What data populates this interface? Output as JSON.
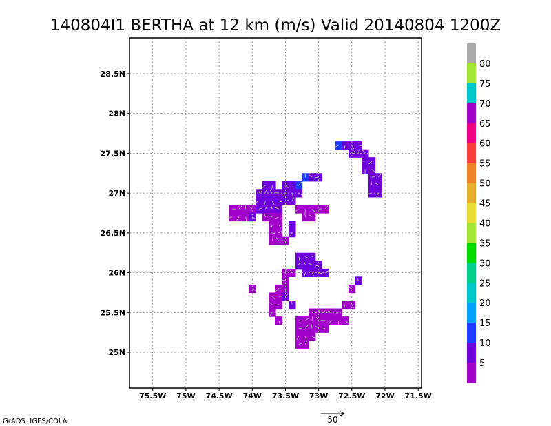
{
  "chart_data": {
    "type": "heatmap",
    "title": "140804I1 BERTHA at 12 km (m/s) Valid 20140804 1200Z",
    "x_tick_labels": [
      "75.5W",
      "75W",
      "74.5W",
      "74W",
      "73.5W",
      "73W",
      "72.5W",
      "72W",
      "71.5W"
    ],
    "x_tick_values": [
      -75.5,
      -75.0,
      -74.5,
      -74.0,
      -73.5,
      -73.0,
      -72.5,
      -72.0,
      -71.5
    ],
    "y_tick_labels": [
      "25N",
      "25.5N",
      "26N",
      "26.5N",
      "27N",
      "27.5N",
      "28N",
      "28.5N"
    ],
    "y_tick_values": [
      25.0,
      25.5,
      26.0,
      26.5,
      27.0,
      27.5,
      28.0,
      28.5
    ],
    "xlim": [
      -75.85,
      -71.45
    ],
    "ylim": [
      24.55,
      28.95
    ],
    "grid": true,
    "colorbar": {
      "labels": [
        "5",
        "10",
        "15",
        "20",
        "25",
        "30",
        "35",
        "40",
        "45",
        "50",
        "55",
        "60",
        "65",
        "70",
        "75",
        "80"
      ],
      "colors": [
        "#a000c8",
        "#6e00dc",
        "#1e3cff",
        "#00a0ff",
        "#00c8c8",
        "#00d28c",
        "#00dc00",
        "#a0e632",
        "#e6dc32",
        "#e6af2d",
        "#f08228",
        "#fa3c3c",
        "#f00082",
        "#a000c8",
        "#00c8c8",
        "#a0e632",
        "#aaaaaa"
      ]
    },
    "wind_speed_cells": [
      {
        "lon": -74.3,
        "lat": 26.8,
        "v": 5
      },
      {
        "lon": -74.2,
        "lat": 26.8,
        "v": 5
      },
      {
        "lon": -74.1,
        "lat": 26.8,
        "v": 5
      },
      {
        "lon": -74.0,
        "lat": 26.8,
        "v": 5
      },
      {
        "lon": -74.3,
        "lat": 26.7,
        "v": 5
      },
      {
        "lon": -74.2,
        "lat": 26.7,
        "v": 5
      },
      {
        "lon": -74.1,
        "lat": 26.7,
        "v": 5
      },
      {
        "lon": -74.0,
        "lat": 26.7,
        "v": 10
      },
      {
        "lon": -73.9,
        "lat": 26.8,
        "v": 10
      },
      {
        "lon": -73.8,
        "lat": 26.8,
        "v": 10
      },
      {
        "lon": -73.7,
        "lat": 26.8,
        "v": 10
      },
      {
        "lon": -73.6,
        "lat": 26.8,
        "v": 10
      },
      {
        "lon": -73.9,
        "lat": 26.9,
        "v": 10
      },
      {
        "lon": -73.8,
        "lat": 26.9,
        "v": 10
      },
      {
        "lon": -73.7,
        "lat": 26.9,
        "v": 10
      },
      {
        "lon": -73.6,
        "lat": 26.9,
        "v": 10
      },
      {
        "lon": -73.9,
        "lat": 27.0,
        "v": 10
      },
      {
        "lon": -73.8,
        "lat": 27.0,
        "v": 10
      },
      {
        "lon": -73.7,
        "lat": 27.0,
        "v": 10
      },
      {
        "lon": -73.6,
        "lat": 27.0,
        "v": 10
      },
      {
        "lon": -73.8,
        "lat": 27.1,
        "v": 10
      },
      {
        "lon": -73.7,
        "lat": 27.1,
        "v": 10
      },
      {
        "lon": -73.5,
        "lat": 27.1,
        "v": 10
      },
      {
        "lon": -73.4,
        "lat": 27.1,
        "v": 10
      },
      {
        "lon": -73.3,
        "lat": 27.1,
        "v": 15
      },
      {
        "lon": -73.2,
        "lat": 27.2,
        "v": 15
      },
      {
        "lon": -73.1,
        "lat": 27.2,
        "v": 10
      },
      {
        "lon": -73.0,
        "lat": 27.2,
        "v": 10
      },
      {
        "lon": -73.5,
        "lat": 27.0,
        "v": 10
      },
      {
        "lon": -73.4,
        "lat": 27.0,
        "v": 10
      },
      {
        "lon": -73.3,
        "lat": 27.0,
        "v": 10
      },
      {
        "lon": -73.5,
        "lat": 26.9,
        "v": 10
      },
      {
        "lon": -73.4,
        "lat": 26.9,
        "v": 10
      },
      {
        "lon": -73.8,
        "lat": 26.7,
        "v": 5
      },
      {
        "lon": -73.7,
        "lat": 26.7,
        "v": 5
      },
      {
        "lon": -73.6,
        "lat": 26.7,
        "v": 5
      },
      {
        "lon": -73.7,
        "lat": 26.6,
        "v": 5
      },
      {
        "lon": -73.6,
        "lat": 26.6,
        "v": 5
      },
      {
        "lon": -73.7,
        "lat": 26.5,
        "v": 5
      },
      {
        "lon": -73.6,
        "lat": 26.5,
        "v": 5
      },
      {
        "lon": -73.7,
        "lat": 26.4,
        "v": 5
      },
      {
        "lon": -73.6,
        "lat": 26.4,
        "v": 5
      },
      {
        "lon": -73.5,
        "lat": 26.4,
        "v": 5
      },
      {
        "lon": -73.3,
        "lat": 26.8,
        "v": 5
      },
      {
        "lon": -73.2,
        "lat": 26.8,
        "v": 5
      },
      {
        "lon": -73.1,
        "lat": 26.8,
        "v": 5
      },
      {
        "lon": -73.0,
        "lat": 26.8,
        "v": 5
      },
      {
        "lon": -72.9,
        "lat": 26.8,
        "v": 5
      },
      {
        "lon": -73.2,
        "lat": 26.7,
        "v": 5
      },
      {
        "lon": -73.1,
        "lat": 26.7,
        "v": 5
      },
      {
        "lon": -73.4,
        "lat": 26.6,
        "v": 10
      },
      {
        "lon": -73.4,
        "lat": 26.5,
        "v": 10
      },
      {
        "lon": -73.3,
        "lat": 26.2,
        "v": 10
      },
      {
        "lon": -73.2,
        "lat": 26.2,
        "v": 10
      },
      {
        "lon": -73.1,
        "lat": 26.2,
        "v": 10
      },
      {
        "lon": -73.3,
        "lat": 26.1,
        "v": 10
      },
      {
        "lon": -73.2,
        "lat": 26.1,
        "v": 10
      },
      {
        "lon": -73.1,
        "lat": 26.1,
        "v": 10
      },
      {
        "lon": -73.0,
        "lat": 26.1,
        "v": 10
      },
      {
        "lon": -73.2,
        "lat": 26.0,
        "v": 10
      },
      {
        "lon": -73.1,
        "lat": 26.0,
        "v": 10
      },
      {
        "lon": -73.0,
        "lat": 26.0,
        "v": 10
      },
      {
        "lon": -72.9,
        "lat": 26.0,
        "v": 10
      },
      {
        "lon": -73.5,
        "lat": 26.0,
        "v": 5
      },
      {
        "lon": -73.4,
        "lat": 26.0,
        "v": 5
      },
      {
        "lon": -73.5,
        "lat": 25.9,
        "v": 5
      },
      {
        "lon": -73.6,
        "lat": 25.8,
        "v": 5
      },
      {
        "lon": -73.5,
        "lat": 25.8,
        "v": 5
      },
      {
        "lon": -73.7,
        "lat": 25.7,
        "v": 5
      },
      {
        "lon": -73.6,
        "lat": 25.7,
        "v": 5
      },
      {
        "lon": -73.5,
        "lat": 25.7,
        "v": 10
      },
      {
        "lon": -73.4,
        "lat": 25.6,
        "v": 10
      },
      {
        "lon": -73.7,
        "lat": 25.6,
        "v": 5
      },
      {
        "lon": -73.6,
        "lat": 25.6,
        "v": 5
      },
      {
        "lon": -73.7,
        "lat": 25.5,
        "v": 5
      },
      {
        "lon": -73.6,
        "lat": 25.4,
        "v": 5
      },
      {
        "lon": -74.0,
        "lat": 25.8,
        "v": 5
      },
      {
        "lon": -73.1,
        "lat": 25.5,
        "v": 5
      },
      {
        "lon": -73.0,
        "lat": 25.5,
        "v": 5
      },
      {
        "lon": -72.9,
        "lat": 25.5,
        "v": 5
      },
      {
        "lon": -72.8,
        "lat": 25.5,
        "v": 5
      },
      {
        "lon": -72.7,
        "lat": 25.5,
        "v": 5
      },
      {
        "lon": -72.6,
        "lat": 25.6,
        "v": 5
      },
      {
        "lon": -72.5,
        "lat": 25.6,
        "v": 5
      },
      {
        "lon": -73.3,
        "lat": 25.4,
        "v": 5
      },
      {
        "lon": -73.2,
        "lat": 25.4,
        "v": 5
      },
      {
        "lon": -73.1,
        "lat": 25.4,
        "v": 5
      },
      {
        "lon": -73.0,
        "lat": 25.4,
        "v": 5
      },
      {
        "lon": -72.9,
        "lat": 25.4,
        "v": 5
      },
      {
        "lon": -72.8,
        "lat": 25.4,
        "v": 5
      },
      {
        "lon": -72.7,
        "lat": 25.4,
        "v": 5
      },
      {
        "lon": -72.6,
        "lat": 25.4,
        "v": 5
      },
      {
        "lon": -73.3,
        "lat": 25.3,
        "v": 5
      },
      {
        "lon": -73.2,
        "lat": 25.3,
        "v": 5
      },
      {
        "lon": -73.1,
        "lat": 25.3,
        "v": 5
      },
      {
        "lon": -73.0,
        "lat": 25.3,
        "v": 5
      },
      {
        "lon": -72.9,
        "lat": 25.3,
        "v": 5
      },
      {
        "lon": -73.3,
        "lat": 25.2,
        "v": 5
      },
      {
        "lon": -73.2,
        "lat": 25.2,
        "v": 5
      },
      {
        "lon": -73.1,
        "lat": 25.2,
        "v": 5
      },
      {
        "lon": -73.3,
        "lat": 25.1,
        "v": 5
      },
      {
        "lon": -73.2,
        "lat": 25.1,
        "v": 5
      },
      {
        "lon": -72.4,
        "lat": 25.9,
        "v": 10
      },
      {
        "lon": -72.5,
        "lat": 25.8,
        "v": 5
      },
      {
        "lon": -72.7,
        "lat": 27.6,
        "v": 15
      },
      {
        "lon": -72.6,
        "lat": 27.6,
        "v": 10
      },
      {
        "lon": -72.5,
        "lat": 27.6,
        "v": 10
      },
      {
        "lon": -72.4,
        "lat": 27.6,
        "v": 10
      },
      {
        "lon": -72.5,
        "lat": 27.5,
        "v": 10
      },
      {
        "lon": -72.4,
        "lat": 27.5,
        "v": 10
      },
      {
        "lon": -72.3,
        "lat": 27.5,
        "v": 10
      },
      {
        "lon": -72.3,
        "lat": 27.4,
        "v": 10
      },
      {
        "lon": -72.2,
        "lat": 27.4,
        "v": 10
      },
      {
        "lon": -72.3,
        "lat": 27.3,
        "v": 10
      },
      {
        "lon": -72.2,
        "lat": 27.3,
        "v": 10
      },
      {
        "lon": -72.2,
        "lat": 27.2,
        "v": 10
      },
      {
        "lon": -72.1,
        "lat": 27.2,
        "v": 10
      },
      {
        "lon": -72.2,
        "lat": 27.1,
        "v": 10
      },
      {
        "lon": -72.1,
        "lat": 27.1,
        "v": 10
      },
      {
        "lon": -72.2,
        "lat": 27.0,
        "v": 10
      },
      {
        "lon": -72.1,
        "lat": 27.0,
        "v": 10
      }
    ]
  },
  "credit": "GrADS: IGES/COLA",
  "reference_vector": {
    "label": "50",
    "value": 50
  }
}
